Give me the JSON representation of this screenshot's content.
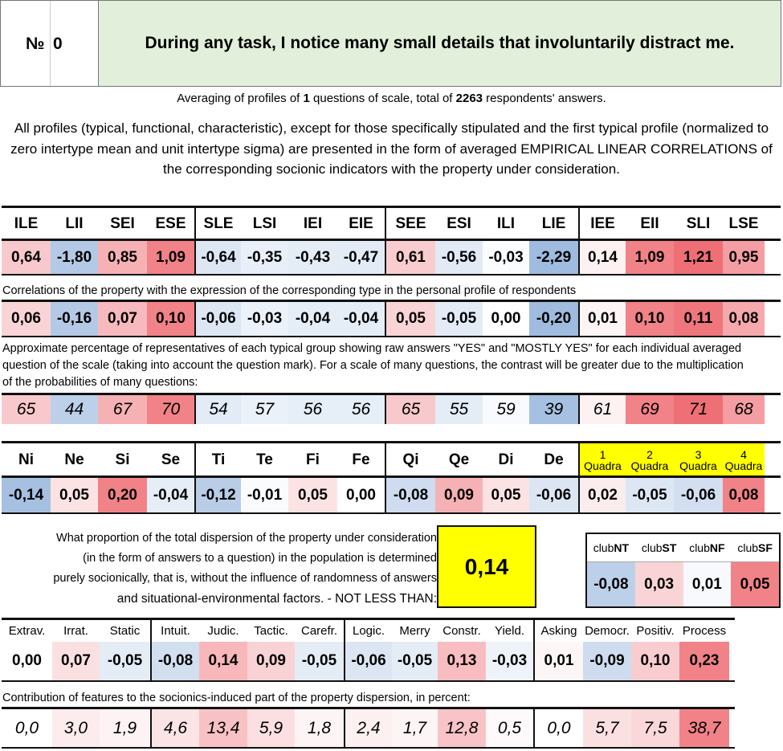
{
  "header": {
    "number_label": "№",
    "number_value": "0",
    "question": "During any task, I notice many small details that involuntarily distract me."
  },
  "averaging": {
    "prefix": "Averaging of profiles of ",
    "questions": "1",
    "middle": " questions of scale, total of ",
    "respondents": "2263",
    "suffix": " respondents' answers."
  },
  "notice": "All profiles (typical, functional, characteristic), except for those specifically stipulated and the first typical profile (normalized to zero intertype mean and unit intertype sigma) are presented in the form of averaged EMPIRICAL LINEAR CORRELATIONS of the corresponding socionic indicators with the property under consideration.",
  "types": {
    "labels": [
      "ILE",
      "LII",
      "SEI",
      "ESE",
      "SLE",
      "LSI",
      "IEI",
      "EIE",
      "SEE",
      "ESI",
      "ILI",
      "LIE",
      "IEE",
      "EII",
      "SLI",
      "LSE"
    ],
    "values": [
      "0,64",
      "-1,80",
      "0,85",
      "1,09",
      "-0,64",
      "-0,35",
      "-0,43",
      "-0,47",
      "0,61",
      "-0,56",
      "-0,03",
      "-2,29",
      "0,14",
      "1,09",
      "1,21",
      "0,95"
    ],
    "colors": [
      "#f8c9cc",
      "#b4c9e5",
      "#f6b1b5",
      "#f18287",
      "#dde7f4",
      "#e8eff8",
      "#e4ecf6",
      "#e2ebf6",
      "#f9cdd0",
      "#e1eaf5",
      "#fbfcfe",
      "#9fbbdf",
      "#fdf1f2",
      "#f18287",
      "#ee6f75",
      "#f49da2"
    ]
  },
  "corr_caption": "Correlations of the property with the expression of the corresponding type in the personal profile of respondents",
  "corr": {
    "values": [
      "0,06",
      "-0,16",
      "0,07",
      "0,10",
      "-0,06",
      "-0,03",
      "-0,04",
      "-0,04",
      "0,05",
      "-0,05",
      "0,00",
      "-0,20",
      "0,01",
      "0,10",
      "0,11",
      "0,08"
    ],
    "colors": [
      "#f9d4d6",
      "#b4c9e5",
      "#f6b9bd",
      "#f18287",
      "#dde7f4",
      "#ecf2f9",
      "#e5edf7",
      "#e5edf7",
      "#f9d4d6",
      "#e2ebf6",
      "#ffffff",
      "#9fbbdf",
      "#fdf4f5",
      "#f18287",
      "#ef767c",
      "#f6a9ad"
    ]
  },
  "pct_caption": "Approximate percentage of representatives of each typical group showing raw answers \"YES\" and \"MOSTLY YES\" for each individual averaged question of the scale (taking into account the question mark). For a scale of many questions, the contrast will be greater due to the multiplication of the probabilities of many questions:",
  "pct": {
    "values": [
      "65",
      "44",
      "67",
      "70",
      "54",
      "57",
      "56",
      "56",
      "65",
      "55",
      "59",
      "39",
      "61",
      "69",
      "71",
      "68"
    ],
    "colors": [
      "#f8c9cc",
      "#bdd0e9",
      "#f6b1b5",
      "#f18287",
      "#e2ebf6",
      "#ebf1f9",
      "#e6eef7",
      "#e6eef7",
      "#f8c9cc",
      "#e4ecf6",
      "#f8fafd",
      "#a6c0e1",
      "#fdf1f2",
      "#f18287",
      "#ee6f75",
      "#f49da2"
    ]
  },
  "functions": {
    "labels": [
      "Ni",
      "Ne",
      "Si",
      "Se",
      "Ti",
      "Te",
      "Fi",
      "Fe",
      "Qi",
      "Qe",
      "Di",
      "De"
    ],
    "values": [
      "-0,14",
      "0,05",
      "0,20",
      "-0,04",
      "-0,12",
      "-0,01",
      "0,05",
      "0,00",
      "-0,08",
      "0,09",
      "0,05",
      "-0,06"
    ],
    "colors": [
      "#a6c0e1",
      "#fbe3e4",
      "#f18287",
      "#e5edf7",
      "#b9cde7",
      "#fafbfd",
      "#fbe3e4",
      "#ffffff",
      "#cfdcef",
      "#f6b1b5",
      "#fbe3e4",
      "#dce6f3"
    ]
  },
  "quadras": {
    "numbers": [
      "1",
      "2",
      "3",
      "4"
    ],
    "word": "Quadra",
    "values": [
      "0,02",
      "-0,05",
      "-0,06",
      "0,08"
    ],
    "colors": [
      "#fbeced",
      "#dde7f4",
      "#d3dff0",
      "#f18287"
    ],
    "header_color": "#ffff00"
  },
  "proportion": {
    "lines": [
      "What proportion of the total dispersion of the property under consideration",
      "(in the form of answers to a question) in the population is determined",
      "purely socionically, that is, without the influence of randomness of answers"
    ],
    "last_line": "and situational-environmental factors. - NOT LESS THAN:",
    "value": "0,14",
    "box_color": "#ffff00"
  },
  "clubs": {
    "labels": [
      [
        "club",
        "NT"
      ],
      [
        "club",
        "ST"
      ],
      [
        "club",
        "NF"
      ],
      [
        "club",
        "SF"
      ]
    ],
    "values": [
      "-0,08",
      "0,03",
      "0,01",
      "0,05"
    ],
    "colors": [
      "#bdd0e9",
      "#f9d4d6",
      "#f7f9fc",
      "#f18287"
    ]
  },
  "features": {
    "labels": [
      "Extrav.",
      "Irrat.",
      "Static",
      "Intuit.",
      "Judic.",
      "Tactic.",
      "Carefr.",
      "Logic.",
      "Merry",
      "Constr.",
      "Yield.",
      "Asking",
      "Democr.",
      "Positiv.",
      "Process"
    ],
    "values": [
      "0,00",
      "0,07",
      "-0,05",
      "-0,08",
      "0,14",
      "0,09",
      "-0,05",
      "-0,06",
      "-0,05",
      "0,13",
      "-0,03",
      "0,01",
      "-0,09",
      "0,10",
      "0,23"
    ],
    "colors": [
      "#ffffff",
      "#fbe0e2",
      "#e4ecf6",
      "#d2dfef",
      "#f8b7bb",
      "#f9d2d5",
      "#e4ecf6",
      "#dce6f3",
      "#e4ecf6",
      "#f8bdc0",
      "#eef3f9",
      "#fdf6f6",
      "#cfdcef",
      "#f9cdd0",
      "#f18287"
    ]
  },
  "contrib_caption": "Contribution of features to the socionics-induced part of the property dispersion, in percent:",
  "contrib": {
    "values": [
      "0,0",
      "3,0",
      "1,9",
      "4,6",
      "13,4",
      "5,9",
      "1,8",
      "2,4",
      "1,7",
      "12,8",
      "0,5",
      "0,0",
      "5,7",
      "7,5",
      "38,7"
    ],
    "colors": [
      "#ffffff",
      "#fcecee",
      "#fdf3f4",
      "#fbe4e6",
      "#f8c2c5",
      "#fbdfe1",
      "#fdf4f5",
      "#fcf0f1",
      "#fdf4f5",
      "#f8c4c7",
      "#fef9fa",
      "#ffffff",
      "#fbe0e2",
      "#fad8da",
      "#f18287"
    ]
  }
}
